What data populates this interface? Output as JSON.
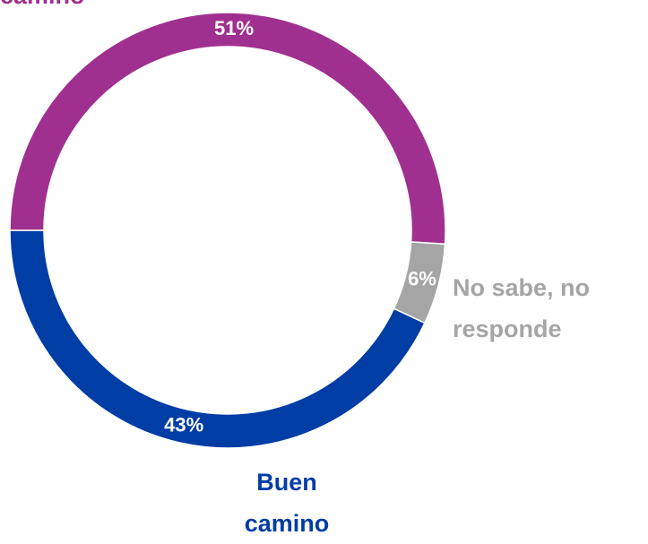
{
  "chart_data": {
    "type": "donut",
    "categories": [
      "No sabe, no responde",
      "Buen camino",
      "camino"
    ],
    "values": [
      6,
      43,
      51
    ],
    "value_labels": [
      "6%",
      "43%",
      "51%"
    ],
    "colors": [
      "#a5a5a5",
      "#003da5",
      "#a0308f"
    ]
  }
}
